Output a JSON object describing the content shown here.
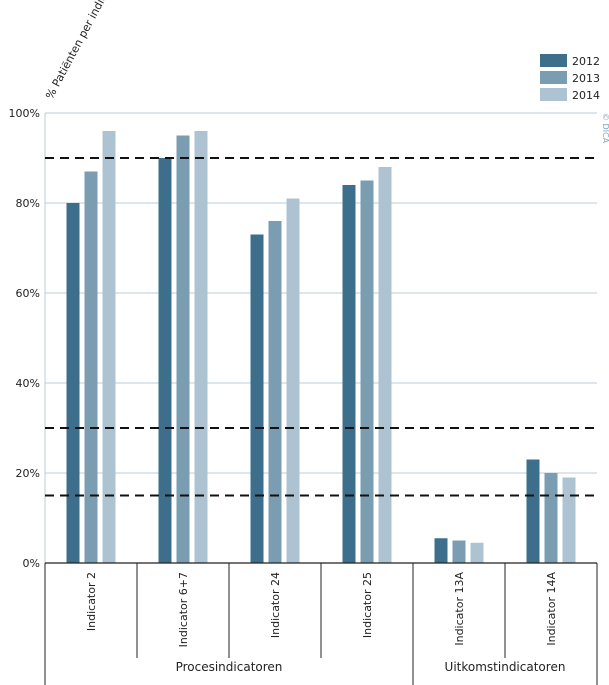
{
  "chart_data": {
    "type": "bar",
    "ylabel": "% Patiënten per indicator",
    "ylim": [
      0,
      100
    ],
    "yticks": [
      0,
      20,
      40,
      60,
      80,
      100
    ],
    "ytick_labels": [
      "0%",
      "20%",
      "40%",
      "60%",
      "80%",
      "100%"
    ],
    "categories": [
      "Indicator 2",
      "Indicator 6+7",
      "Indicator 24",
      "Indicator 25",
      "Indicator 13A",
      "Indicator 14A"
    ],
    "series": [
      {
        "name": "2012",
        "color": "#3d6f8c",
        "values": [
          80,
          90,
          73,
          84,
          5.5,
          23
        ]
      },
      {
        "name": "2013",
        "color": "#7a9db2",
        "values": [
          87,
          95,
          76,
          85,
          5,
          20
        ]
      },
      {
        "name": "2014",
        "color": "#aec3d1",
        "values": [
          96,
          96,
          81,
          88,
          4.5,
          19
        ]
      }
    ],
    "reference_lines": [
      90,
      30,
      15
    ],
    "groups": [
      {
        "label": "Procesindicatoren",
        "categories": 4
      },
      {
        "label": "Uitkomstindicatoren",
        "categories": 2
      }
    ],
    "legend_position": "top-right",
    "grid": true,
    "copyright": "© DICA"
  }
}
